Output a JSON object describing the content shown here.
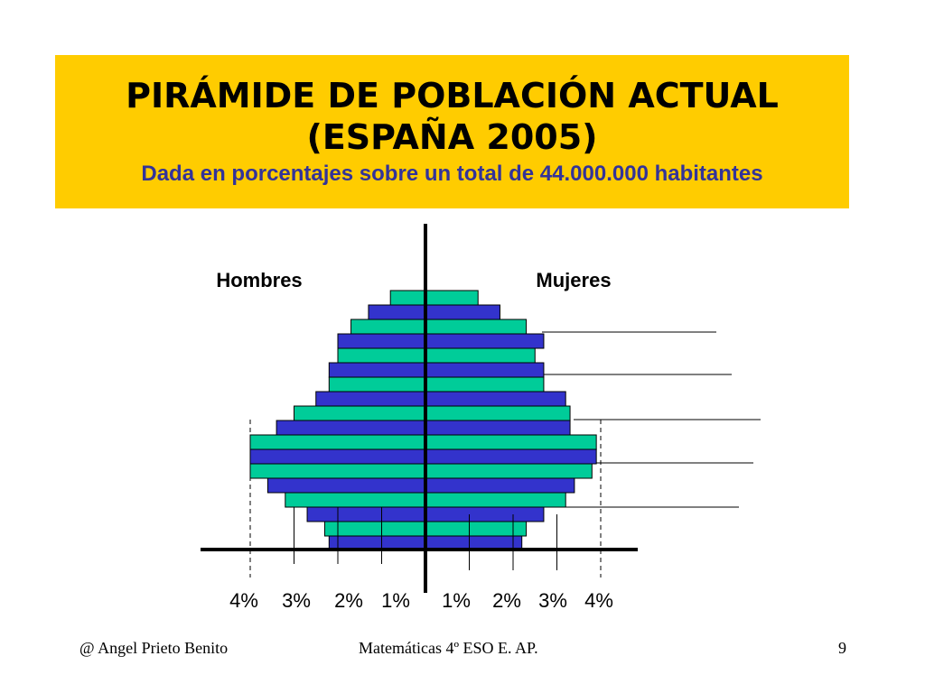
{
  "title": {
    "line1": "PIRÁMIDE DE POBLACIÓN ACTUAL",
    "line2": "(ESPAÑA 2005)",
    "subtitle": "Dada en porcentajes sobre un total de 44.000.000  habitantes"
  },
  "chart_data": {
    "type": "bar",
    "orientation": "population-pyramid",
    "series": [
      {
        "name": "Hombres",
        "values": [
          2.2,
          2.3,
          2.7,
          3.2,
          3.6,
          4.0,
          4.0,
          4.0,
          3.4,
          3.0,
          2.5,
          2.2,
          2.2,
          2.0,
          2.0,
          1.7,
          1.3,
          0.8
        ]
      },
      {
        "name": "Mujeres",
        "values": [
          2.2,
          2.3,
          2.7,
          3.2,
          3.4,
          3.8,
          3.9,
          3.9,
          3.3,
          3.3,
          3.2,
          2.7,
          2.7,
          2.5,
          2.7,
          2.3,
          1.7,
          1.2
        ]
      }
    ],
    "bar_colors": [
      "#3333cc",
      "#00cc99"
    ],
    "x_ticks_left": [
      "4%",
      "3%",
      "2%",
      "1%"
    ],
    "x_ticks_right": [
      "1%",
      "2%",
      "3%",
      "4%"
    ],
    "xlim": [
      0,
      4
    ],
    "xlabel": "",
    "ylabel": ""
  },
  "footer": {
    "author": "@  Angel Prieto Benito",
    "course": "Matemáticas  4º ESO  E. AP.",
    "page": "9"
  },
  "colors": {
    "title_background": "#ffcc00",
    "subtitle_text": "#333399",
    "bar_blue": "#3333cc",
    "bar_green": "#00cc99"
  }
}
